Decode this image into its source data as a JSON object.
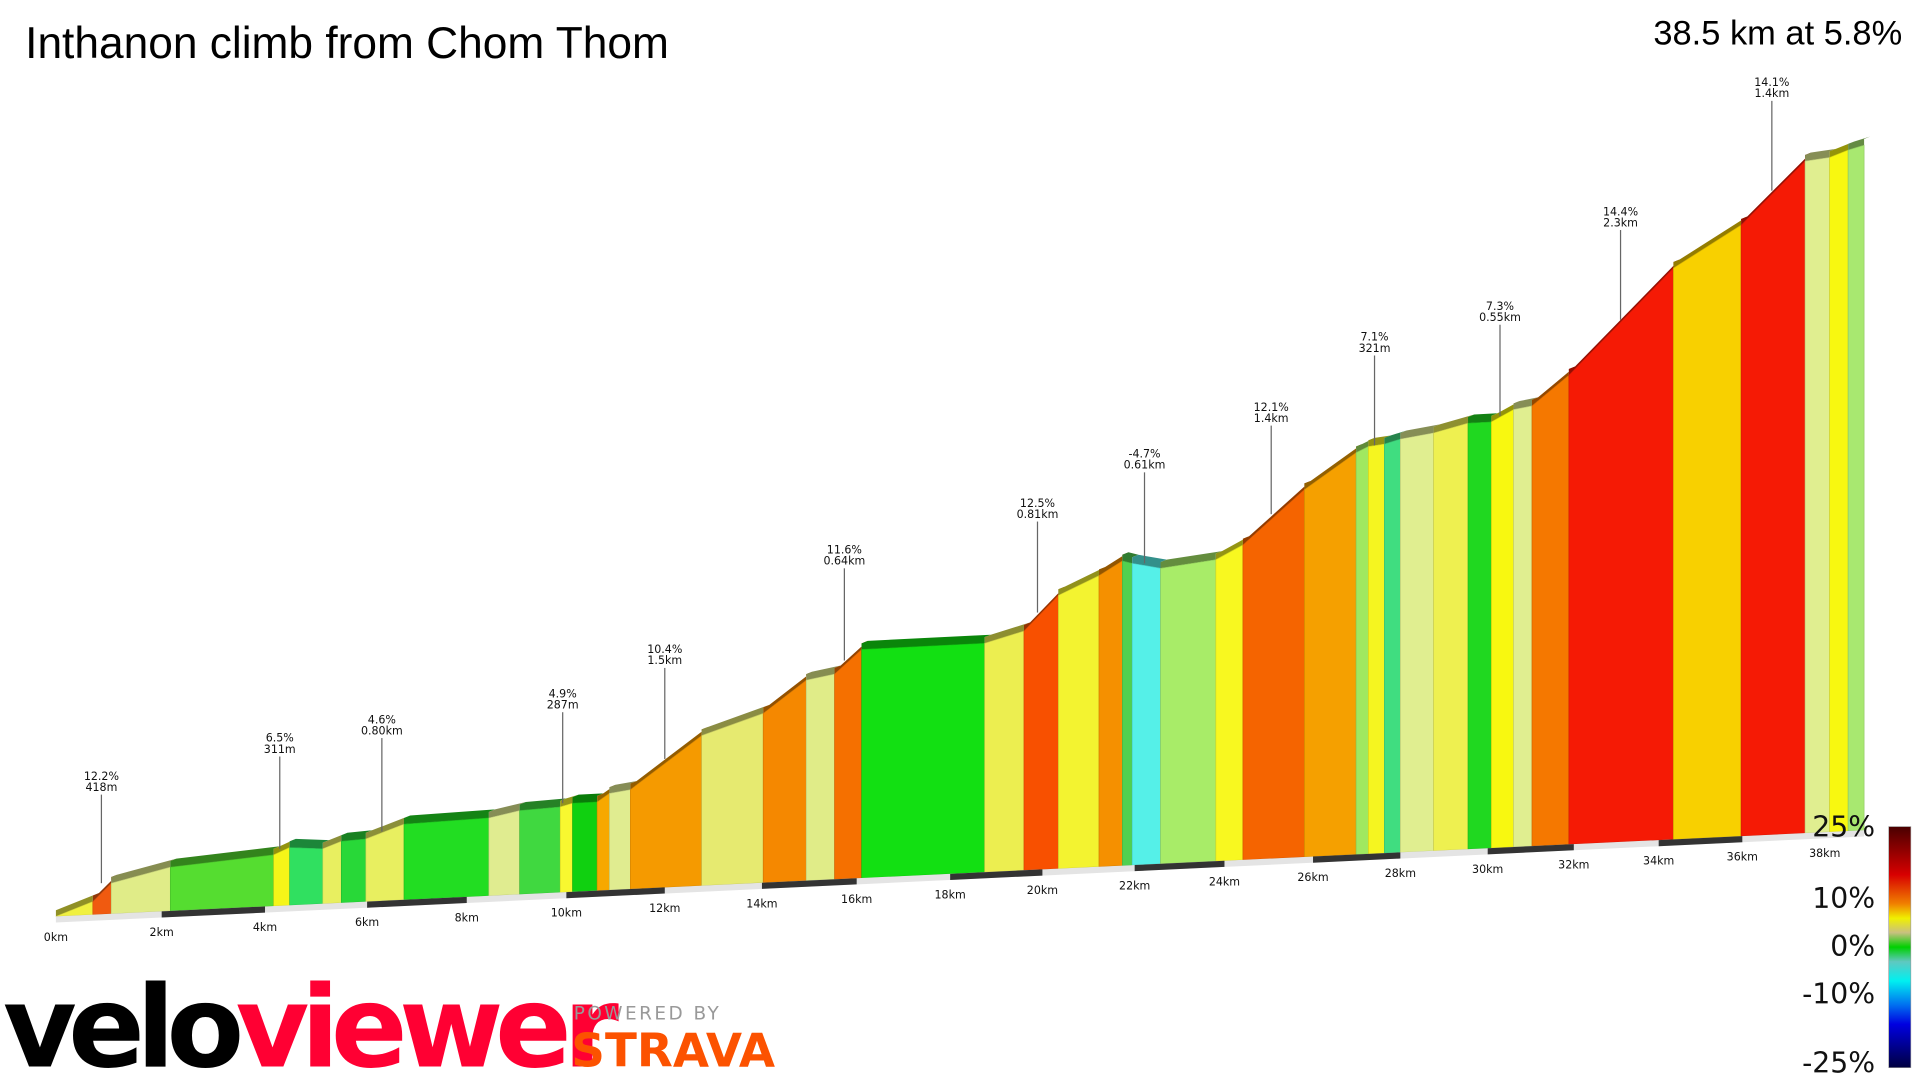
{
  "chart_data": {
    "type": "area",
    "title": "Inthanon climb from Chom Thom",
    "summary": "38.5 km at 5.8%",
    "x_ticks": [
      "0km",
      "2km",
      "4km",
      "6km",
      "8km",
      "10km",
      "12km",
      "14km",
      "16km",
      "18km",
      "20km",
      "22km",
      "24km",
      "26km",
      "28km",
      "30km",
      "32km",
      "34km",
      "36km",
      "38km"
    ],
    "annotations": [
      {
        "pct": "12.2%",
        "dist": "418m"
      },
      {
        "pct": "6.5%",
        "dist": "311m"
      },
      {
        "pct": "4.6%",
        "dist": "0.80km"
      },
      {
        "pct": "4.9%",
        "dist": "287m"
      },
      {
        "pct": "10.4%",
        "dist": "1.5km"
      },
      {
        "pct": "11.6%",
        "dist": "0.64km"
      },
      {
        "pct": "12.5%",
        "dist": "0.81km"
      },
      {
        "pct": "-4.7%",
        "dist": "0.61km"
      },
      {
        "pct": "12.1%",
        "dist": "1.4km"
      },
      {
        "pct": "7.1%",
        "dist": "321m"
      },
      {
        "pct": "7.3%",
        "dist": "0.55km"
      },
      {
        "pct": "14.4%",
        "dist": "2.3km"
      },
      {
        "pct": "14.1%",
        "dist": "1.4km"
      }
    ],
    "segment_colors": [
      "#f0f040",
      "#f05a10",
      "#e0ec88",
      "#55dd30",
      "#f5f518",
      "#30e060",
      "#e8ef60",
      "#28d838",
      "#e8ef60",
      "#22dd22",
      "#e0ec90",
      "#40d840",
      "#f8f830",
      "#10d010",
      "#f7a800",
      "#e0ec90",
      "#f59a00",
      "#e6ea70",
      "#f58800",
      "#e0ec88",
      "#f57000",
      "#12e012",
      "#ecee50",
      "#f85000",
      "#f3f330",
      "#f59000",
      "#50d050",
      "#55f0e8",
      "#a8ec68",
      "#f8f820",
      "#f56400",
      "#f5a000",
      "#a0e860",
      "#f5f520",
      "#40dd80",
      "#e0ee90",
      "#eef050",
      "#20d820",
      "#f8f810",
      "#e0ee90",
      "#f57800",
      "#f51a05",
      "#f8d000",
      "#f51a05",
      "#e0ee90",
      "#f8f810",
      "#a8e870"
    ],
    "legend": {
      "labels": [
        "25%",
        "10%",
        "0%",
        "-10%",
        "-25%"
      ],
      "range": [
        -25,
        25
      ]
    }
  },
  "branding": {
    "velo": "velo",
    "viewer": "viewer",
    "powered_by": "POWERED BY",
    "strava": "STRAVA",
    "velo_color": "#000000",
    "viewer_color": "#ff0033",
    "strava_color": "#fc5200"
  }
}
